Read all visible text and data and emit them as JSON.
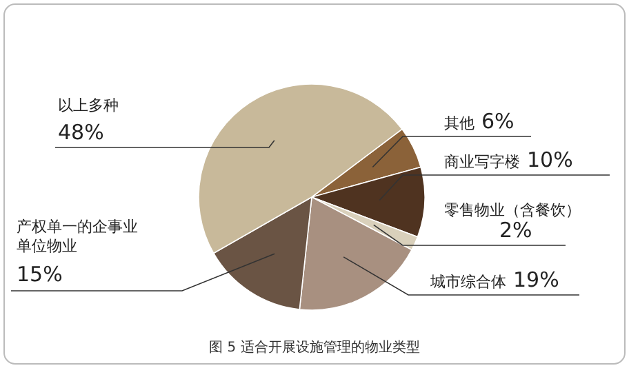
{
  "chart_data": {
    "type": "pie",
    "title": "图 5  适合开展设施管理的物业类型",
    "categories": [
      "其他",
      "商业写字楼",
      "零售物业（含餐饮）",
      "城市综合体",
      "产权单一的企事业单位物业",
      "以上多种"
    ],
    "values": [
      6,
      10,
      2,
      19,
      15,
      48
    ],
    "value_labels": [
      "6%",
      "10%",
      "2%",
      "19%",
      "15%",
      "48%"
    ],
    "colors": [
      "#8b6239",
      "#4f3320",
      "#d9d0bb",
      "#a89080",
      "#6a5444",
      "#c8b99a"
    ]
  }
}
